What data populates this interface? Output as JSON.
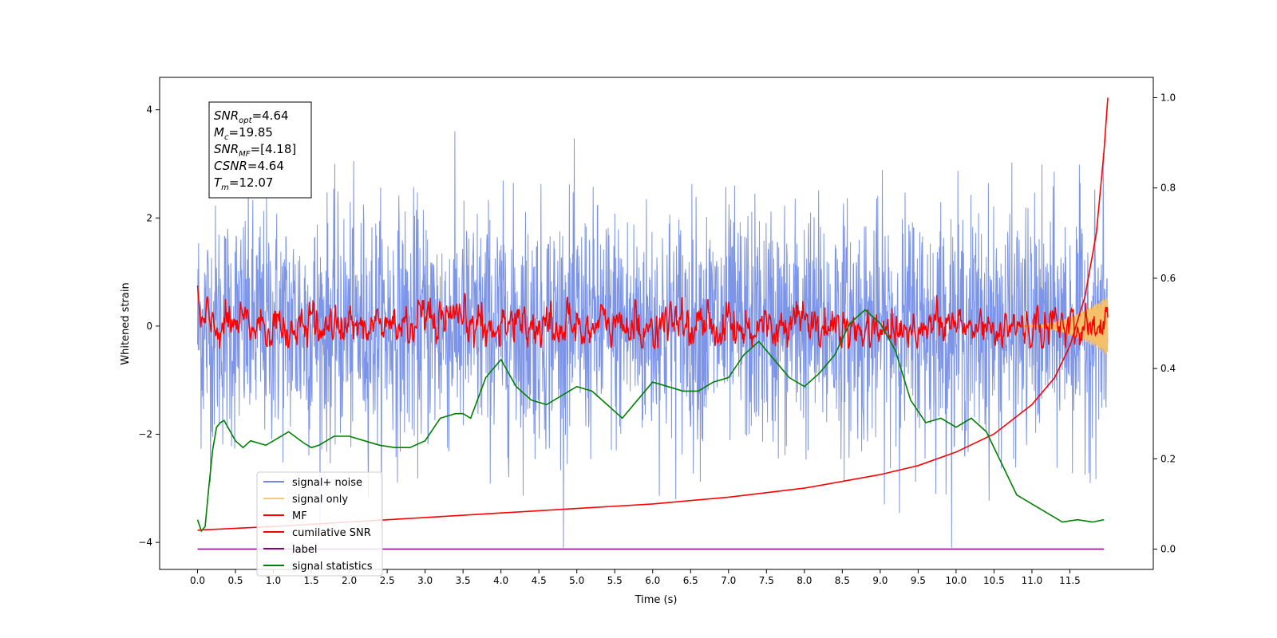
{
  "chart_data": {
    "type": "line",
    "xlabel": "Time (s)",
    "ylabel": "Whitened strain",
    "xlim": [
      -0.5,
      12.6
    ],
    "ylim_left": [
      -4.5,
      4.6
    ],
    "ylim_right": [
      -0.045,
      1.045
    ],
    "x_ticks": [
      "0.0",
      "0.5",
      "1.0",
      "1.5",
      "2.0",
      "2.5",
      "3.0",
      "3.5",
      "4.0",
      "4.5",
      "5.0",
      "5.5",
      "6.0",
      "6.5",
      "7.0",
      "7.5",
      "8.0",
      "8.5",
      "9.0",
      "9.5",
      "10.0",
      "10.5",
      "11.0",
      "11.5"
    ],
    "y_ticks_left": [
      "4",
      "2",
      "0",
      "−2",
      "−4"
    ],
    "y_ticks_right": [
      "1.0",
      "0.8",
      "0.6",
      "0.4",
      "0.2",
      "0.0"
    ],
    "annotation": {
      "lines": [
        {
          "sym": "SNR",
          "sub": "opt",
          "val": "=4.64"
        },
        {
          "sym": "M",
          "sub": "c",
          "val": "=19.85"
        },
        {
          "sym": "SNR",
          "sub": "MF",
          "val": "=[4.18]"
        },
        {
          "sym": "CSNR",
          "sub": "",
          "val": "=4.64"
        },
        {
          "sym": "T",
          "sub": "m",
          "val": "=12.07"
        }
      ]
    },
    "legend": {
      "placement": "lower-left",
      "entries": [
        {
          "label": "signal+ noise",
          "color": "#6f8ae6"
        },
        {
          "label": "signal only",
          "color": "#f5c06a"
        },
        {
          "label": "MF",
          "color": "#ff0000"
        },
        {
          "label": "cumilative SNR",
          "color": "#ff0000"
        },
        {
          "label": "label",
          "color": "#800080"
        },
        {
          "label": "signal statistics",
          "color": "#008000"
        }
      ]
    },
    "series": [
      {
        "name": "signal+ noise",
        "axis": "left",
        "amplitude": 1.1,
        "peak_max": 4.15,
        "peak_min": -4.1,
        "x_range": [
          0,
          12.0
        ]
      },
      {
        "name": "signal only",
        "axis": "left",
        "envelope_start": 0.0,
        "envelope_end": 0.55
      },
      {
        "name": "MF",
        "axis": "left",
        "amplitude": 0.25,
        "peak_max": 0.85,
        "start_value": 0.75
      },
      {
        "name": "cumilative SNR",
        "axis": "right",
        "x": [
          0.0,
          1.0,
          2.0,
          3.0,
          4.0,
          5.0,
          6.0,
          7.0,
          8.0,
          9.0,
          9.5,
          10.0,
          10.5,
          11.0,
          11.3,
          11.5,
          11.7,
          11.85,
          11.95,
          12.0
        ],
        "y": [
          0.042,
          0.05,
          0.06,
          0.07,
          0.08,
          0.09,
          0.1,
          0.115,
          0.135,
          0.165,
          0.185,
          0.215,
          0.255,
          0.32,
          0.38,
          0.45,
          0.56,
          0.7,
          0.88,
          1.0
        ]
      },
      {
        "name": "label",
        "axis": "right",
        "x": [
          0.0,
          11.95
        ],
        "y": [
          0.0,
          0.0
        ]
      },
      {
        "name": "signal statistics",
        "axis": "right",
        "x": [
          0.0,
          0.05,
          0.1,
          0.15,
          0.2,
          0.25,
          0.3,
          0.35,
          0.4,
          0.5,
          0.6,
          0.7,
          0.8,
          0.9,
          1.0,
          1.2,
          1.4,
          1.5,
          1.6,
          1.8,
          2.0,
          2.2,
          2.4,
          2.6,
          2.8,
          3.0,
          3.2,
          3.4,
          3.5,
          3.6,
          3.8,
          4.0,
          4.1,
          4.2,
          4.4,
          4.6,
          4.8,
          5.0,
          5.2,
          5.4,
          5.6,
          5.8,
          6.0,
          6.2,
          6.4,
          6.6,
          6.8,
          7.0,
          7.2,
          7.4,
          7.6,
          7.8,
          8.0,
          8.2,
          8.4,
          8.6,
          8.8,
          9.0,
          9.2,
          9.4,
          9.6,
          9.8,
          10.0,
          10.2,
          10.4,
          10.6,
          10.8,
          11.0,
          11.2,
          11.4,
          11.6,
          11.8,
          11.95
        ],
        "y": [
          0.065,
          0.04,
          0.05,
          0.14,
          0.22,
          0.27,
          0.28,
          0.285,
          0.27,
          0.24,
          0.225,
          0.24,
          0.235,
          0.23,
          0.24,
          0.26,
          0.235,
          0.225,
          0.23,
          0.25,
          0.25,
          0.24,
          0.23,
          0.225,
          0.225,
          0.24,
          0.29,
          0.3,
          0.3,
          0.29,
          0.38,
          0.42,
          0.39,
          0.36,
          0.33,
          0.32,
          0.34,
          0.36,
          0.35,
          0.32,
          0.29,
          0.33,
          0.37,
          0.36,
          0.35,
          0.35,
          0.37,
          0.38,
          0.43,
          0.46,
          0.42,
          0.38,
          0.36,
          0.39,
          0.43,
          0.5,
          0.53,
          0.5,
          0.44,
          0.33,
          0.28,
          0.29,
          0.27,
          0.29,
          0.26,
          0.19,
          0.12,
          0.1,
          0.08,
          0.06,
          0.065,
          0.06,
          0.065
        ]
      }
    ]
  }
}
